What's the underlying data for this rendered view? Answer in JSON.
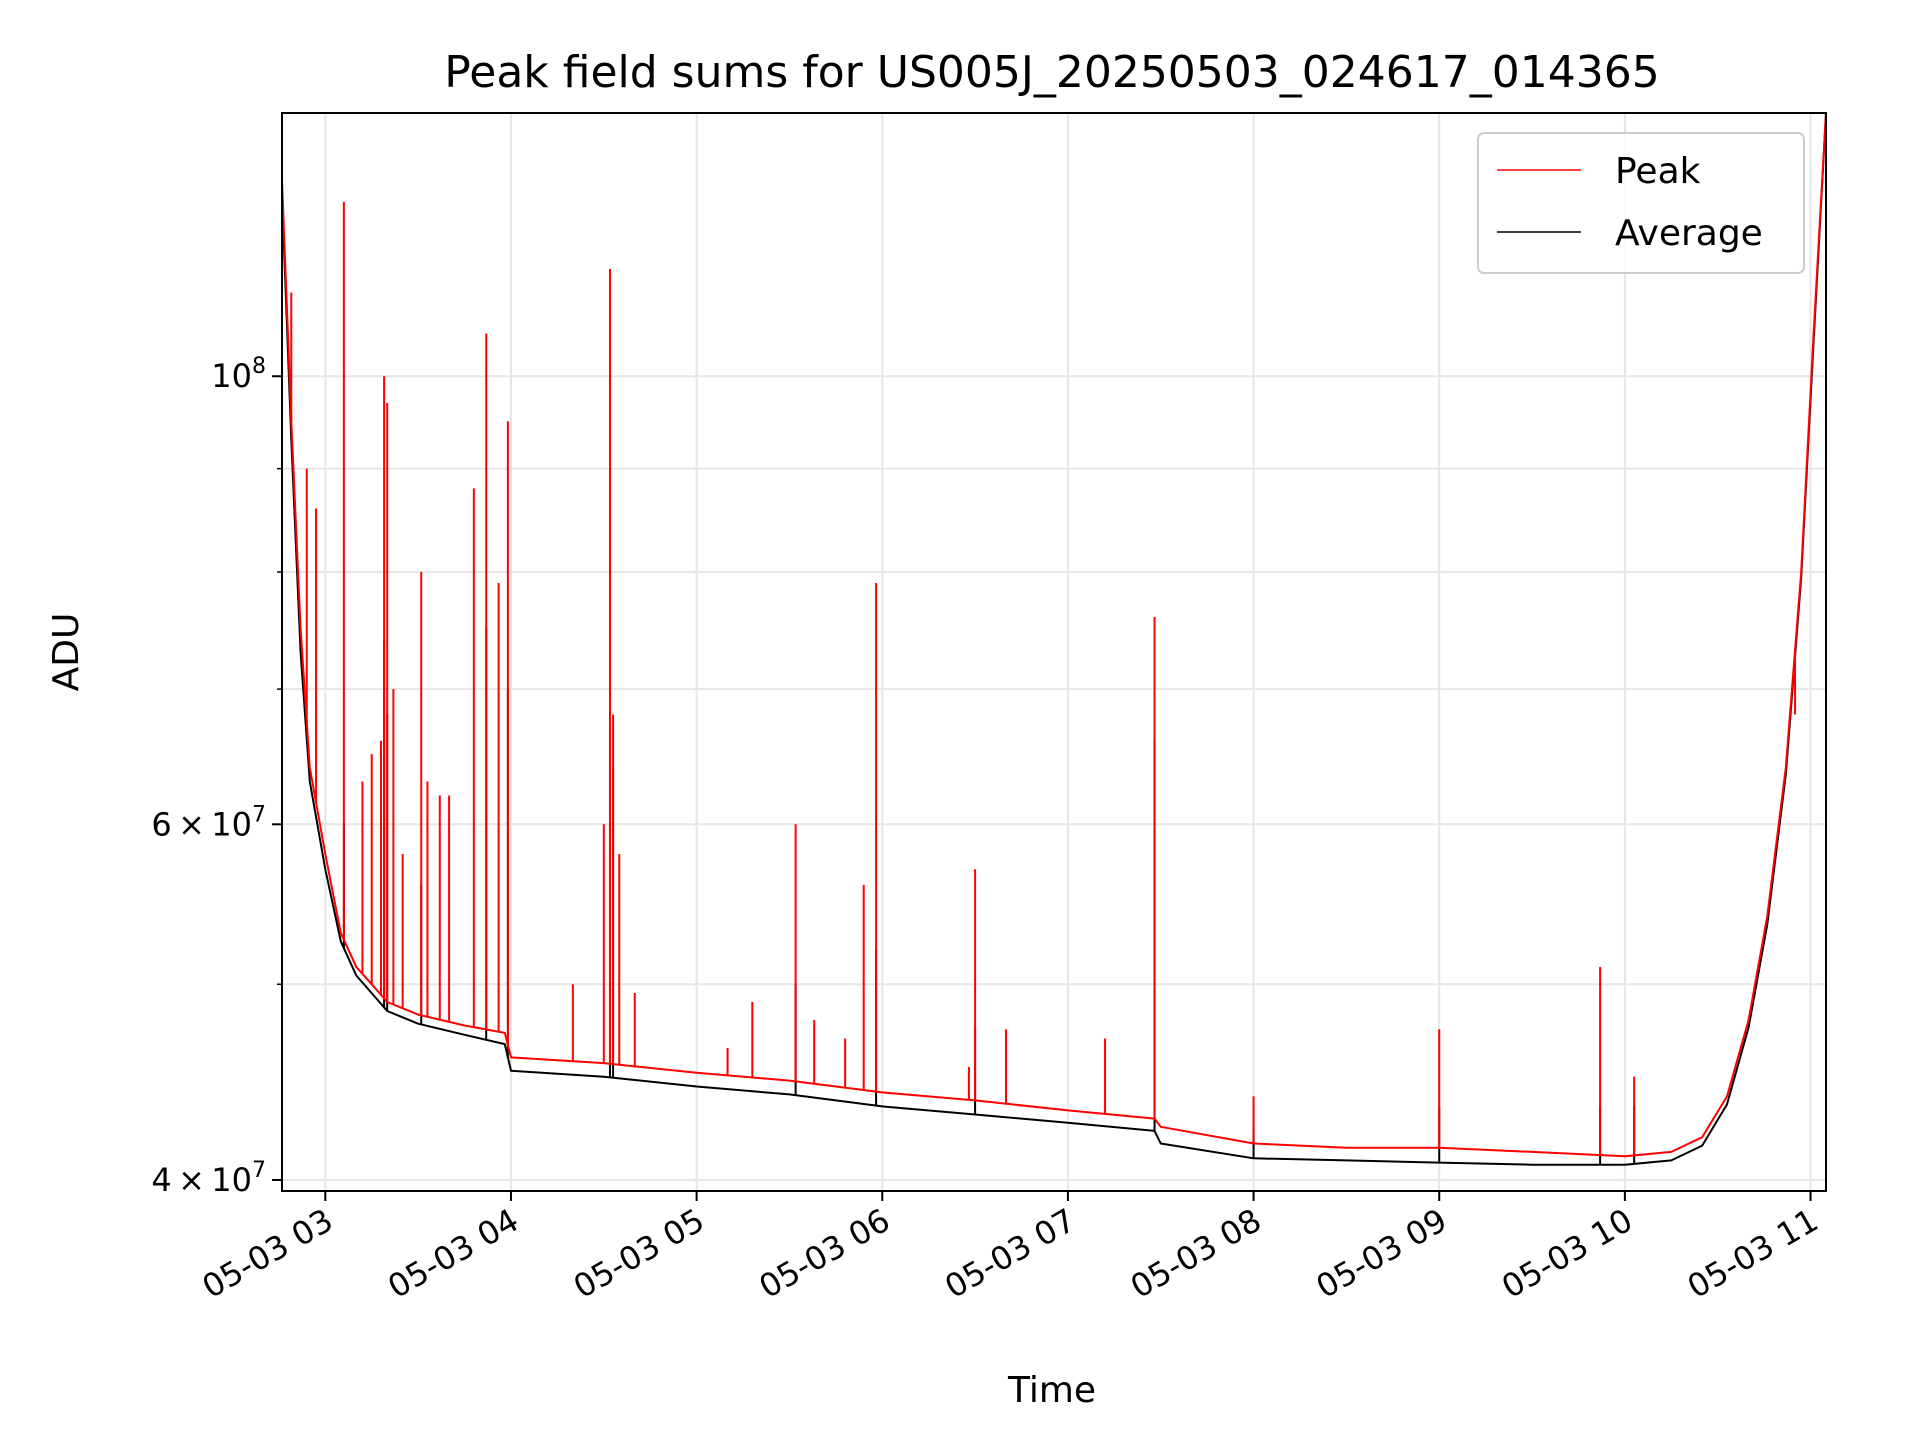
{
  "chart_data": {
    "type": "line",
    "title": "Peak field sums for US005J_20250503_024617_014365",
    "xlabel": "Time",
    "ylabel": "ADU",
    "y_scale": "log",
    "ylim": [
      39500000,
      135000000
    ],
    "xlim": [
      "2025-05-03 02:46",
      "2025-05-03 11:05"
    ],
    "grid": true,
    "legend_position": "top-right",
    "x_ticks": [
      {
        "t": "2025-05-03 03:00",
        "label": "05-03 03"
      },
      {
        "t": "2025-05-03 04:00",
        "label": "05-03 04"
      },
      {
        "t": "2025-05-03 05:00",
        "label": "05-03 05"
      },
      {
        "t": "2025-05-03 06:00",
        "label": "05-03 06"
      },
      {
        "t": "2025-05-03 07:00",
        "label": "05-03 07"
      },
      {
        "t": "2025-05-03 08:00",
        "label": "05-03 08"
      },
      {
        "t": "2025-05-03 09:00",
        "label": "05-03 09"
      },
      {
        "t": "2025-05-03 10:00",
        "label": "05-03 10"
      },
      {
        "t": "2025-05-03 11:00",
        "label": "05-03 11"
      }
    ],
    "y_ticks": [
      {
        "value": 40000000,
        "base": "4 × 10",
        "exp": "7"
      },
      {
        "value": 60000000,
        "base": "6 × 10",
        "exp": "7"
      },
      {
        "value": 100000000,
        "base": "10",
        "exp": "8"
      }
    ],
    "y_minor_ticks": [
      50000000,
      70000000,
      80000000,
      90000000
    ],
    "series": [
      {
        "name": "Peak",
        "color": "#ff0000",
        "baseline": [
          [
            "2025-05-03 02:46",
            125000000
          ],
          [
            "2025-05-03 02:49",
            95000000
          ],
          [
            "2025-05-03 02:52",
            75000000
          ],
          [
            "2025-05-03 02:55",
            64000000
          ],
          [
            "2025-05-03 03:00",
            58000000
          ],
          [
            "2025-05-03 03:05",
            53000000
          ],
          [
            "2025-05-03 03:10",
            51000000
          ],
          [
            "2025-05-03 03:15",
            50000000
          ],
          [
            "2025-05-03 03:20",
            49000000
          ],
          [
            "2025-05-03 03:30",
            48300000
          ],
          [
            "2025-05-03 03:45",
            47700000
          ],
          [
            "2025-05-03 03:58",
            47300000
          ],
          [
            "2025-05-03 04:00",
            46000000
          ],
          [
            "2025-05-03 04:30",
            45700000
          ],
          [
            "2025-05-03 05:00",
            45200000
          ],
          [
            "2025-05-03 05:30",
            44800000
          ],
          [
            "2025-05-03 06:00",
            44200000
          ],
          [
            "2025-05-03 06:30",
            43800000
          ],
          [
            "2025-05-03 07:00",
            43300000
          ],
          [
            "2025-05-03 07:28",
            42900000
          ],
          [
            "2025-05-03 07:30",
            42500000
          ],
          [
            "2025-05-03 08:00",
            41700000
          ],
          [
            "2025-05-03 08:30",
            41500000
          ],
          [
            "2025-05-03 09:00",
            41500000
          ],
          [
            "2025-05-03 09:30",
            41300000
          ],
          [
            "2025-05-03 10:00",
            41100000
          ],
          [
            "2025-05-03 10:15",
            41300000
          ],
          [
            "2025-05-03 10:25",
            42000000
          ],
          [
            "2025-05-03 10:33",
            44000000
          ],
          [
            "2025-05-03 10:40",
            48000000
          ],
          [
            "2025-05-03 10:46",
            54000000
          ],
          [
            "2025-05-03 10:52",
            64000000
          ],
          [
            "2025-05-03 10:57",
            80000000
          ],
          [
            "2025-05-03 11:01",
            105000000
          ],
          [
            "2025-05-03 11:05",
            135000000
          ]
        ],
        "spikes": [
          [
            "2025-05-03 02:49",
            110000000
          ],
          [
            "2025-05-03 02:54",
            90000000
          ],
          [
            "2025-05-03 02:57",
            86000000
          ],
          [
            "2025-05-03 03:06",
            122000000
          ],
          [
            "2025-05-03 03:12",
            63000000
          ],
          [
            "2025-05-03 03:15",
            65000000
          ],
          [
            "2025-05-03 03:18",
            66000000
          ],
          [
            "2025-05-03 03:19",
            100000000
          ],
          [
            "2025-05-03 03:20",
            97000000
          ],
          [
            "2025-05-03 03:22",
            70000000
          ],
          [
            "2025-05-03 03:25",
            58000000
          ],
          [
            "2025-05-03 03:31",
            80000000
          ],
          [
            "2025-05-03 03:33",
            63000000
          ],
          [
            "2025-05-03 03:37",
            62000000
          ],
          [
            "2025-05-03 03:40",
            62000000
          ],
          [
            "2025-05-03 03:48",
            88000000
          ],
          [
            "2025-05-03 03:52",
            105000000
          ],
          [
            "2025-05-03 03:56",
            79000000
          ],
          [
            "2025-05-03 03:59",
            95000000
          ],
          [
            "2025-05-03 04:20",
            50000000
          ],
          [
            "2025-05-03 04:30",
            60000000
          ],
          [
            "2025-05-03 04:32",
            113000000
          ],
          [
            "2025-05-03 04:33",
            68000000
          ],
          [
            "2025-05-03 04:35",
            58000000
          ],
          [
            "2025-05-03 04:40",
            49500000
          ],
          [
            "2025-05-03 05:10",
            46500000
          ],
          [
            "2025-05-03 05:18",
            49000000
          ],
          [
            "2025-05-03 05:32",
            60000000
          ],
          [
            "2025-05-03 05:38",
            48000000
          ],
          [
            "2025-05-03 05:48",
            47000000
          ],
          [
            "2025-05-03 05:54",
            56000000
          ],
          [
            "2025-05-03 05:58",
            79000000
          ],
          [
            "2025-05-03 06:28",
            45500000
          ],
          [
            "2025-05-03 06:30",
            57000000
          ],
          [
            "2025-05-03 06:40",
            47500000
          ],
          [
            "2025-05-03 07:12",
            47000000
          ],
          [
            "2025-05-03 07:28",
            76000000
          ],
          [
            "2025-05-03 08:00",
            44000000
          ],
          [
            "2025-05-03 09:00",
            47500000
          ],
          [
            "2025-05-03 09:52",
            51000000
          ],
          [
            "2025-05-03 10:03",
            45000000
          ],
          [
            "2025-05-03 10:55",
            68000000
          ]
        ]
      },
      {
        "name": "Average",
        "color": "#000000",
        "baseline": [
          [
            "2025-05-03 02:46",
            123000000
          ],
          [
            "2025-05-03 02:49",
            93000000
          ],
          [
            "2025-05-03 02:52",
            73000000
          ],
          [
            "2025-05-03 02:55",
            63000000
          ],
          [
            "2025-05-03 03:00",
            57000000
          ],
          [
            "2025-05-03 03:05",
            52500000
          ],
          [
            "2025-05-03 03:10",
            50500000
          ],
          [
            "2025-05-03 03:15",
            49500000
          ],
          [
            "2025-05-03 03:20",
            48500000
          ],
          [
            "2025-05-03 03:30",
            47800000
          ],
          [
            "2025-05-03 03:45",
            47200000
          ],
          [
            "2025-05-03 03:58",
            46700000
          ],
          [
            "2025-05-03 04:00",
            45300000
          ],
          [
            "2025-05-03 04:30",
            45000000
          ],
          [
            "2025-05-03 05:00",
            44500000
          ],
          [
            "2025-05-03 05:30",
            44100000
          ],
          [
            "2025-05-03 06:00",
            43500000
          ],
          [
            "2025-05-03 06:30",
            43100000
          ],
          [
            "2025-05-03 07:00",
            42700000
          ],
          [
            "2025-05-03 07:28",
            42300000
          ],
          [
            "2025-05-03 07:30",
            41700000
          ],
          [
            "2025-05-03 08:00",
            41000000
          ],
          [
            "2025-05-03 08:30",
            40900000
          ],
          [
            "2025-05-03 09:00",
            40800000
          ],
          [
            "2025-05-03 09:30",
            40700000
          ],
          [
            "2025-05-03 10:00",
            40700000
          ],
          [
            "2025-05-03 10:15",
            40900000
          ],
          [
            "2025-05-03 10:25",
            41600000
          ],
          [
            "2025-05-03 10:33",
            43600000
          ],
          [
            "2025-05-03 10:40",
            47600000
          ],
          [
            "2025-05-03 10:46",
            53500000
          ],
          [
            "2025-05-03 10:52",
            63500000
          ],
          [
            "2025-05-03 10:57",
            79500000
          ],
          [
            "2025-05-03 11:01",
            104000000
          ],
          [
            "2025-05-03 11:05",
            135000000
          ]
        ],
        "spikes": [
          [
            "2025-05-03 03:06",
            60000000
          ],
          [
            "2025-05-03 03:19",
            74000000
          ],
          [
            "2025-05-03 03:20",
            68000000
          ],
          [
            "2025-05-03 03:31",
            56000000
          ],
          [
            "2025-05-03 03:52",
            75000000
          ],
          [
            "2025-05-03 03:59",
            70000000
          ],
          [
            "2025-05-03 04:32",
            67000000
          ],
          [
            "2025-05-03 04:33",
            64000000
          ],
          [
            "2025-05-03 05:32",
            50000000
          ],
          [
            "2025-05-03 05:58",
            52000000
          ],
          [
            "2025-05-03 06:30",
            47500000
          ],
          [
            "2025-05-03 07:28",
            66000000
          ],
          [
            "2025-05-03 08:00",
            42500000
          ],
          [
            "2025-05-03 09:00",
            43500000
          ],
          [
            "2025-05-03 09:52",
            43500000
          ],
          [
            "2025-05-03 10:03",
            43500000
          ]
        ]
      }
    ],
    "legend": [
      {
        "name": "Peak",
        "color": "#ff0000"
      },
      {
        "name": "Average",
        "color": "#000000"
      }
    ]
  }
}
